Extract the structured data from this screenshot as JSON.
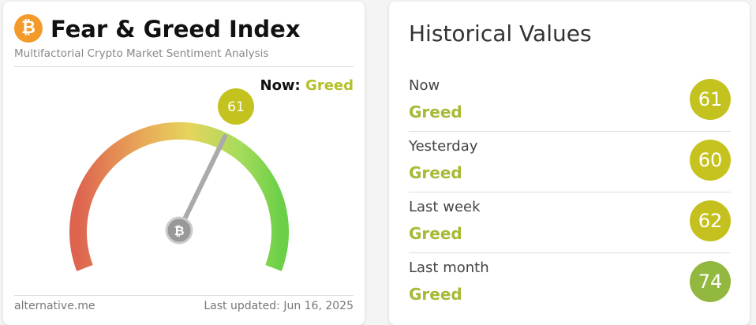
{
  "header": {
    "title": "Fear & Greed Index",
    "subtitle": "Multifactorial Crypto Market Sentiment Analysis"
  },
  "now": {
    "label": "Now:",
    "classification": "Greed",
    "value": 61
  },
  "footer": {
    "source": "alternative.me",
    "updated": "Last updated: Jun 16, 2025"
  },
  "historical": {
    "title": "Historical Values",
    "rows": [
      {
        "period": "Now",
        "classification": "Greed",
        "value": 61
      },
      {
        "period": "Yesterday",
        "classification": "Greed",
        "value": 60
      },
      {
        "period": "Last week",
        "classification": "Greed",
        "value": 62
      },
      {
        "period": "Last month",
        "classification": "Greed",
        "value": 74
      }
    ]
  }
}
